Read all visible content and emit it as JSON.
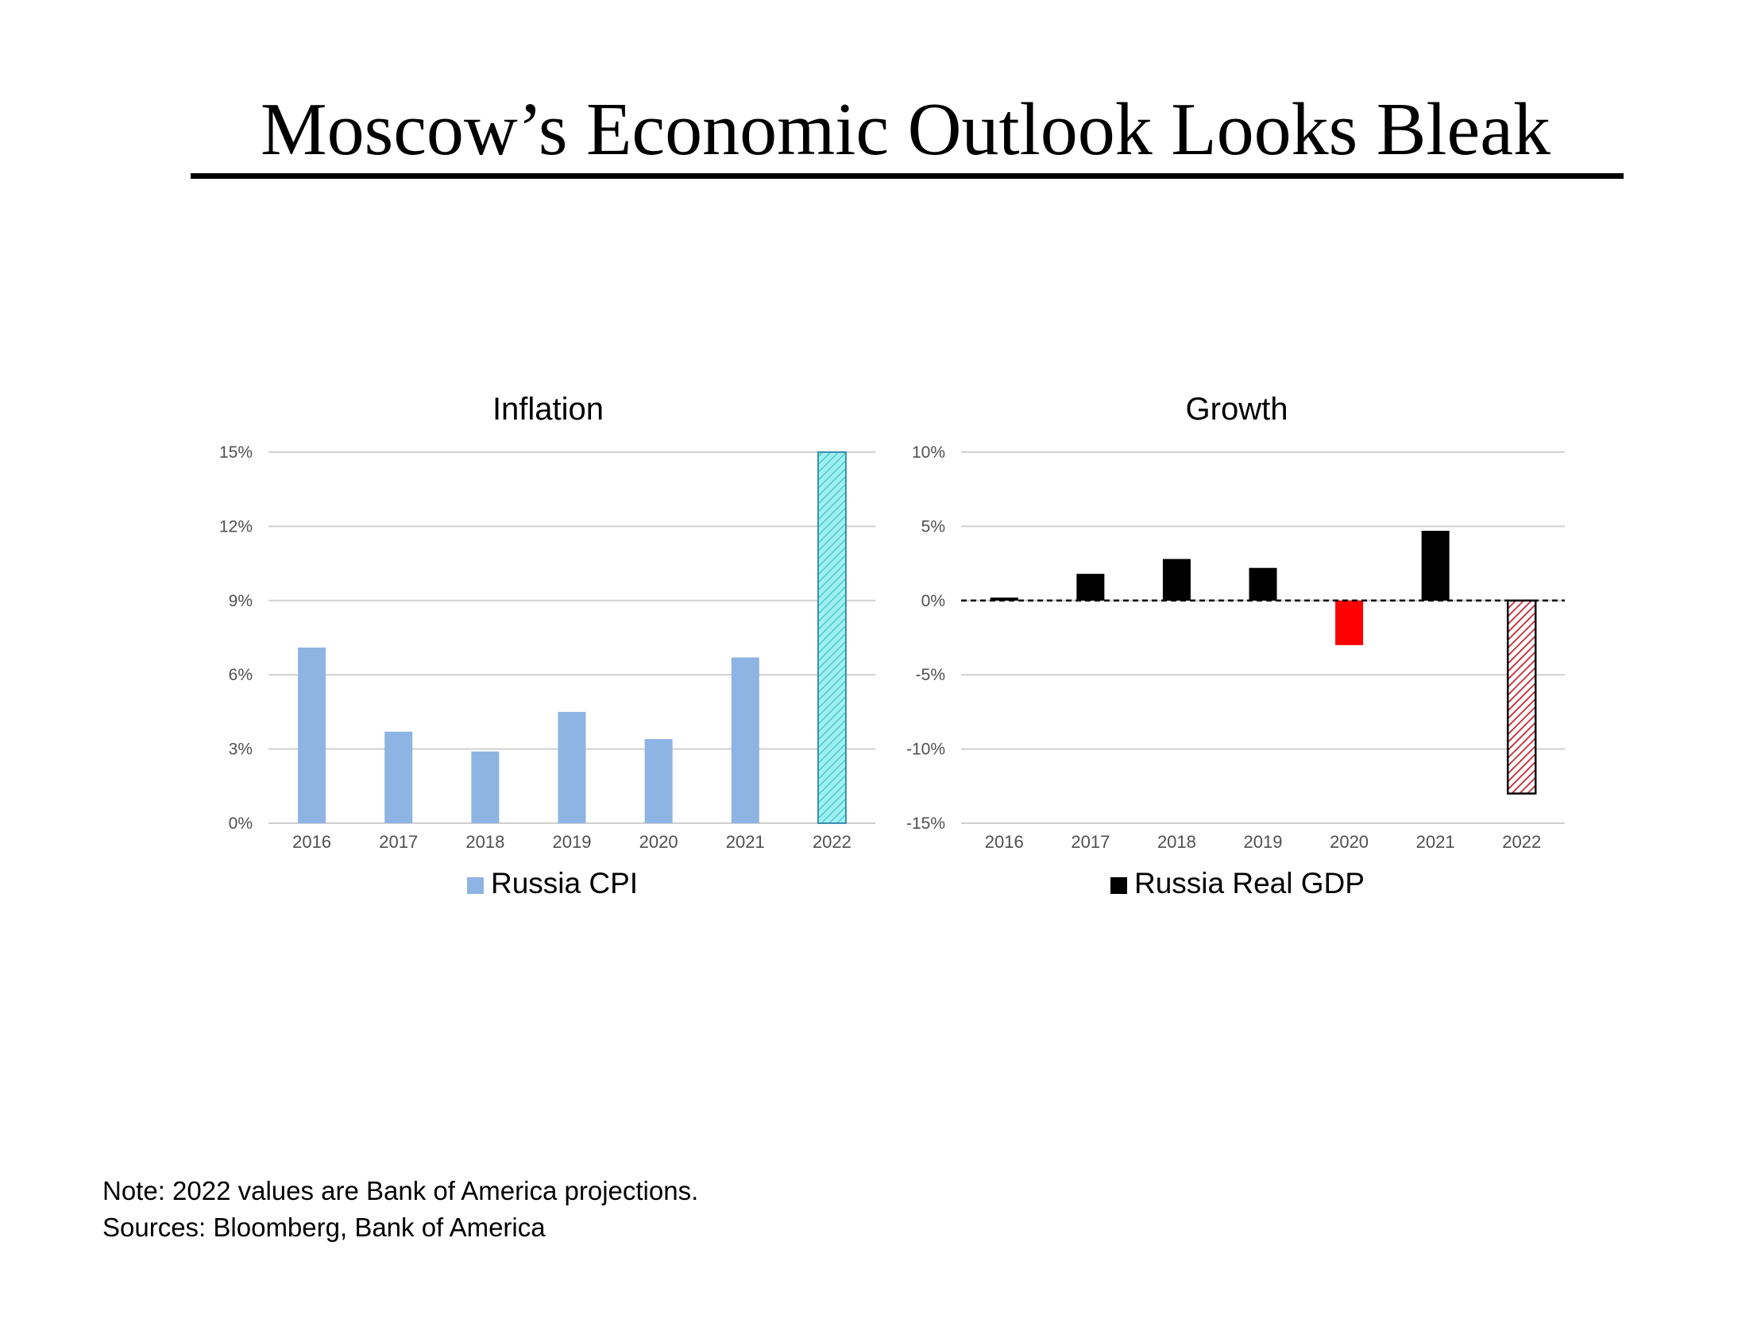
{
  "page": {
    "title": "Moscow’s Economic Outlook Looks Bleak",
    "note": "Note: 2022 values are Bank of America projections.",
    "sources": "Sources: Bloomberg, Bank of America"
  },
  "chart_data": [
    {
      "type": "bar",
      "title": "Inflation",
      "categories": [
        "2016",
        "2017",
        "2018",
        "2019",
        "2020",
        "2021",
        "2022"
      ],
      "series": [
        {
          "name": "Russia CPI",
          "values": [
            7.1,
            3.7,
            2.9,
            4.5,
            3.4,
            6.7,
            15.0
          ]
        }
      ],
      "projected": [
        false,
        false,
        false,
        false,
        false,
        false,
        true
      ],
      "ylim": [
        0,
        15
      ],
      "yticks": [
        0,
        3,
        6,
        9,
        12,
        15
      ],
      "ytick_labels": [
        "0%",
        "3%",
        "6%",
        "9%",
        "12%",
        "15%"
      ],
      "grid": true,
      "legend": "bottom",
      "colors": {
        "bar": "#8EB4E3",
        "projected_fill": "#9FF0F0",
        "projected_hatch": "#4FC9D3",
        "projected_border": "#3D8DB0",
        "legend_swatch": "#8EB4E3"
      }
    },
    {
      "type": "bar",
      "title": "Growth",
      "categories": [
        "2016",
        "2017",
        "2018",
        "2019",
        "2020",
        "2021",
        "2022"
      ],
      "series": [
        {
          "name": "Russia Real GDP",
          "values": [
            0.2,
            1.8,
            2.8,
            2.2,
            -3.0,
            4.7,
            -13.0
          ]
        }
      ],
      "projected": [
        false,
        false,
        false,
        false,
        false,
        false,
        true
      ],
      "ylim": [
        -15,
        10
      ],
      "yticks": [
        -15,
        -10,
        -5,
        0,
        5,
        10
      ],
      "ytick_labels": [
        "-15%",
        "-10%",
        "-5%",
        "0%",
        "5%",
        "10%"
      ],
      "zero_line": "dashed",
      "grid": true,
      "legend": "bottom",
      "colors": {
        "positive": "#000000",
        "negative": "#FF0000",
        "projected_fill": "#FFFFFF",
        "projected_hatch": "#C0272D",
        "projected_border": "#000000",
        "legend_swatch": "#000000"
      }
    }
  ]
}
